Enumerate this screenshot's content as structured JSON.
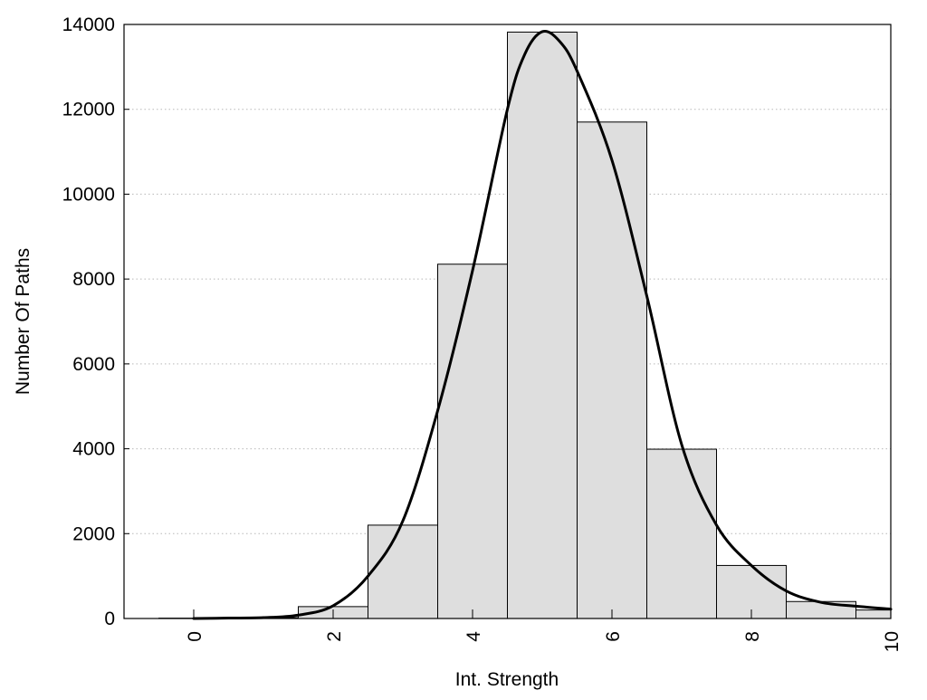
{
  "chart_data": {
    "type": "bar",
    "title": "",
    "xlabel": "Int. Strength",
    "ylabel": "Number Of Paths",
    "xlim": [
      -1,
      10
    ],
    "ylim": [
      0,
      14000
    ],
    "x_ticks": [
      "0",
      "2",
      "4",
      "6",
      "8",
      "10"
    ],
    "y_ticks": [
      "0",
      "2000",
      "4000",
      "6000",
      "8000",
      "10000",
      "12000",
      "14000"
    ],
    "grid": "horizontal dotted",
    "legend": "none",
    "bar_width": 1,
    "bars": {
      "x": [
        0,
        1,
        2,
        3,
        4,
        5,
        6,
        7,
        8,
        9,
        10
      ],
      "values": [
        8,
        20,
        280,
        2200,
        8350,
        13820,
        11700,
        3990,
        1250,
        400,
        200
      ],
      "fill": "#dedede",
      "stroke": "#000000"
    },
    "density_curve": {
      "x": [
        0,
        0.5,
        1,
        1.5,
        2,
        2.5,
        3,
        3.5,
        4,
        4.5,
        4.75,
        5,
        5.25,
        5.5,
        6,
        6.5,
        7,
        7.5,
        8,
        8.5,
        9,
        9.5,
        10
      ],
      "y": [
        0,
        10,
        20,
        80,
        300,
        1000,
        2300,
        4900,
        8200,
        12000,
        13300,
        13830,
        13600,
        12900,
        10800,
        7600,
        4100,
        2200,
        1250,
        650,
        380,
        290,
        220
      ],
      "color": "#000000"
    }
  }
}
